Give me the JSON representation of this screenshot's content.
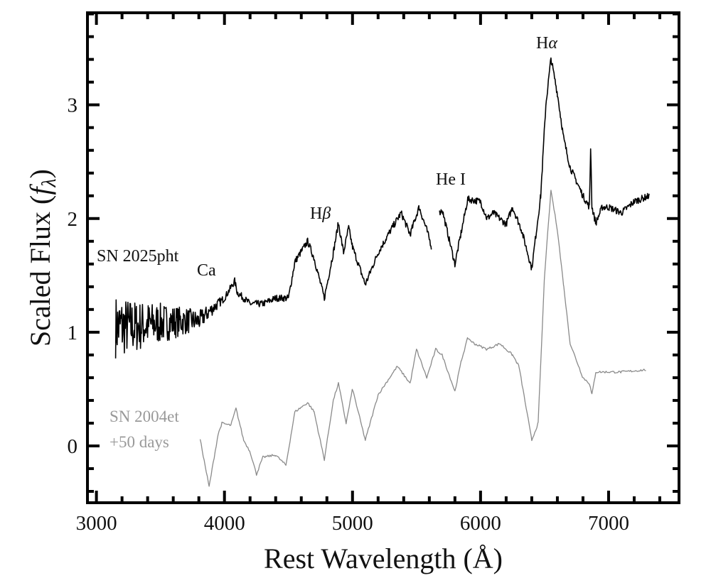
{
  "chart_data": {
    "type": "line",
    "title": "",
    "xlabel": "Rest Wavelength (Å)",
    "ylabel_prefix": "Scaled Flux (",
    "ylabel_symbol": "f",
    "ylabel_sub": "λ",
    "ylabel_suffix": ")",
    "xlim": [
      2930,
      7550
    ],
    "ylim": [
      -0.5,
      3.81
    ],
    "x_ticks": [
      3000,
      4000,
      5000,
      6000,
      7000
    ],
    "x_tick_labels": [
      "3000",
      "4000",
      "5000",
      "6000",
      "7000"
    ],
    "x_minor_step": 200,
    "y_ticks": [
      0,
      1,
      2,
      3
    ],
    "y_tick_labels": [
      "0",
      "1",
      "2",
      "3"
    ],
    "y_minor_step": 0.2,
    "grid": false,
    "colors": {
      "sn2025pht": "#000000",
      "sn2004et": "#8a8a8a"
    },
    "series": [
      {
        "name": "SN 2025pht",
        "x": [
          3150,
          3300,
          3500,
          3700,
          3800,
          3900,
          4000,
          4080,
          4100,
          4200,
          4300,
          4400,
          4500,
          4550,
          4650,
          4700,
          4780,
          4850,
          4890,
          4930,
          4970,
          5000,
          5100,
          5200,
          5300,
          5380,
          5450,
          5520,
          5580,
          5620,
          5640,
          5680,
          5700,
          5800,
          5900,
          6000,
          6050,
          6100,
          6200,
          6250,
          6320,
          6400,
          6470,
          6510,
          6550,
          6600,
          6650,
          6700,
          6800,
          6850,
          6860,
          6870,
          6900,
          6950,
          7000,
          7100,
          7200,
          7320
        ],
        "y": [
          1.05,
          1.05,
          1.08,
          1.1,
          1.1,
          1.2,
          1.3,
          1.45,
          1.35,
          1.25,
          1.25,
          1.3,
          1.3,
          1.62,
          1.8,
          1.65,
          1.3,
          1.7,
          1.96,
          1.7,
          1.92,
          1.75,
          1.42,
          1.7,
          1.9,
          2.05,
          1.86,
          2.1,
          1.9,
          1.74,
          null,
          2.05,
          2.08,
          1.6,
          2.17,
          2.15,
          2.0,
          2.05,
          1.95,
          2.1,
          1.9,
          1.56,
          2.2,
          3.0,
          3.41,
          3.1,
          2.7,
          2.45,
          2.2,
          2.1,
          2.63,
          2.1,
          1.96,
          2.1,
          2.1,
          2.05,
          2.15,
          2.2
        ]
      },
      {
        "name": "SN 2004et +50 days",
        "x": [
          3810,
          3880,
          3950,
          3980,
          4050,
          4090,
          4150,
          4200,
          4250,
          4300,
          4400,
          4480,
          4550,
          4650,
          4700,
          4780,
          4850,
          4890,
          4950,
          5000,
          5100,
          5200,
          5350,
          5450,
          5500,
          5580,
          5650,
          5700,
          5800,
          5850,
          5900,
          5950,
          6050,
          6150,
          6250,
          6300,
          6400,
          6450,
          6500,
          6550,
          6600,
          6650,
          6700,
          6800,
          6850,
          6870,
          6900,
          7000,
          7100,
          7300
        ],
        "y": [
          0.06,
          -0.36,
          0.1,
          0.2,
          0.18,
          0.33,
          0.05,
          -0.05,
          -0.25,
          -0.1,
          -0.08,
          -0.17,
          0.3,
          0.38,
          0.3,
          -0.12,
          0.4,
          0.55,
          0.2,
          0.5,
          0.05,
          0.45,
          0.7,
          0.55,
          0.85,
          0.6,
          0.85,
          0.8,
          0.48,
          0.75,
          0.95,
          0.9,
          0.85,
          0.9,
          0.8,
          0.7,
          0.05,
          0.2,
          1.5,
          2.25,
          1.9,
          1.4,
          0.9,
          0.6,
          0.55,
          0.45,
          0.65,
          0.65,
          0.65,
          0.67
        ]
      }
    ],
    "annotations": {
      "sn2025pht": "SN 2025pht",
      "ca": "Ca",
      "hbeta_H": "H",
      "hbeta_sym": "β",
      "hei": "He I",
      "halpha_H": "H",
      "halpha_sym": "α",
      "sn2004et_line1": "SN 2004et",
      "sn2004et_line2": "+50 days"
    }
  }
}
